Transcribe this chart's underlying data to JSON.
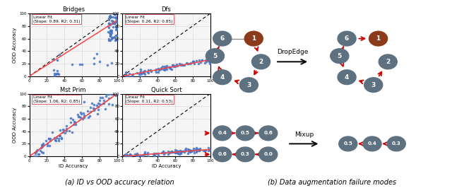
{
  "subplots": [
    {
      "title": "Bridges",
      "slope": 0.89,
      "r2": 0.31,
      "xlabel": "",
      "ylabel": "OOD Accuracy"
    },
    {
      "title": "Dfs",
      "slope": 0.26,
      "r2": 0.85,
      "xlabel": "",
      "ylabel": ""
    },
    {
      "title": "Mst Prim",
      "slope": 1.06,
      "r2": 0.85,
      "xlabel": "ID Accuracy",
      "ylabel": "OOD Accuracy"
    },
    {
      "title": "Quick Sort",
      "slope": 0.11,
      "r2": 0.53,
      "xlabel": "ID Accuracy",
      "ylabel": ""
    }
  ],
  "caption_left": "(a) ID vs OOD accuracy relation",
  "caption_right": "(b) Data augmentation failure modes",
  "node_color_default": "#5e7180",
  "node_color_special": "#8B3A1A",
  "edge_color": "#CC0000",
  "dropedge_label": "DropEdge",
  "mixup_label": "Mixup",
  "scatter_color": "#4472C4",
  "diag_color": "black",
  "fit_color": "#FF4444",
  "grid_color": "#cccccc",
  "legend_edge_color": "#CC4444"
}
